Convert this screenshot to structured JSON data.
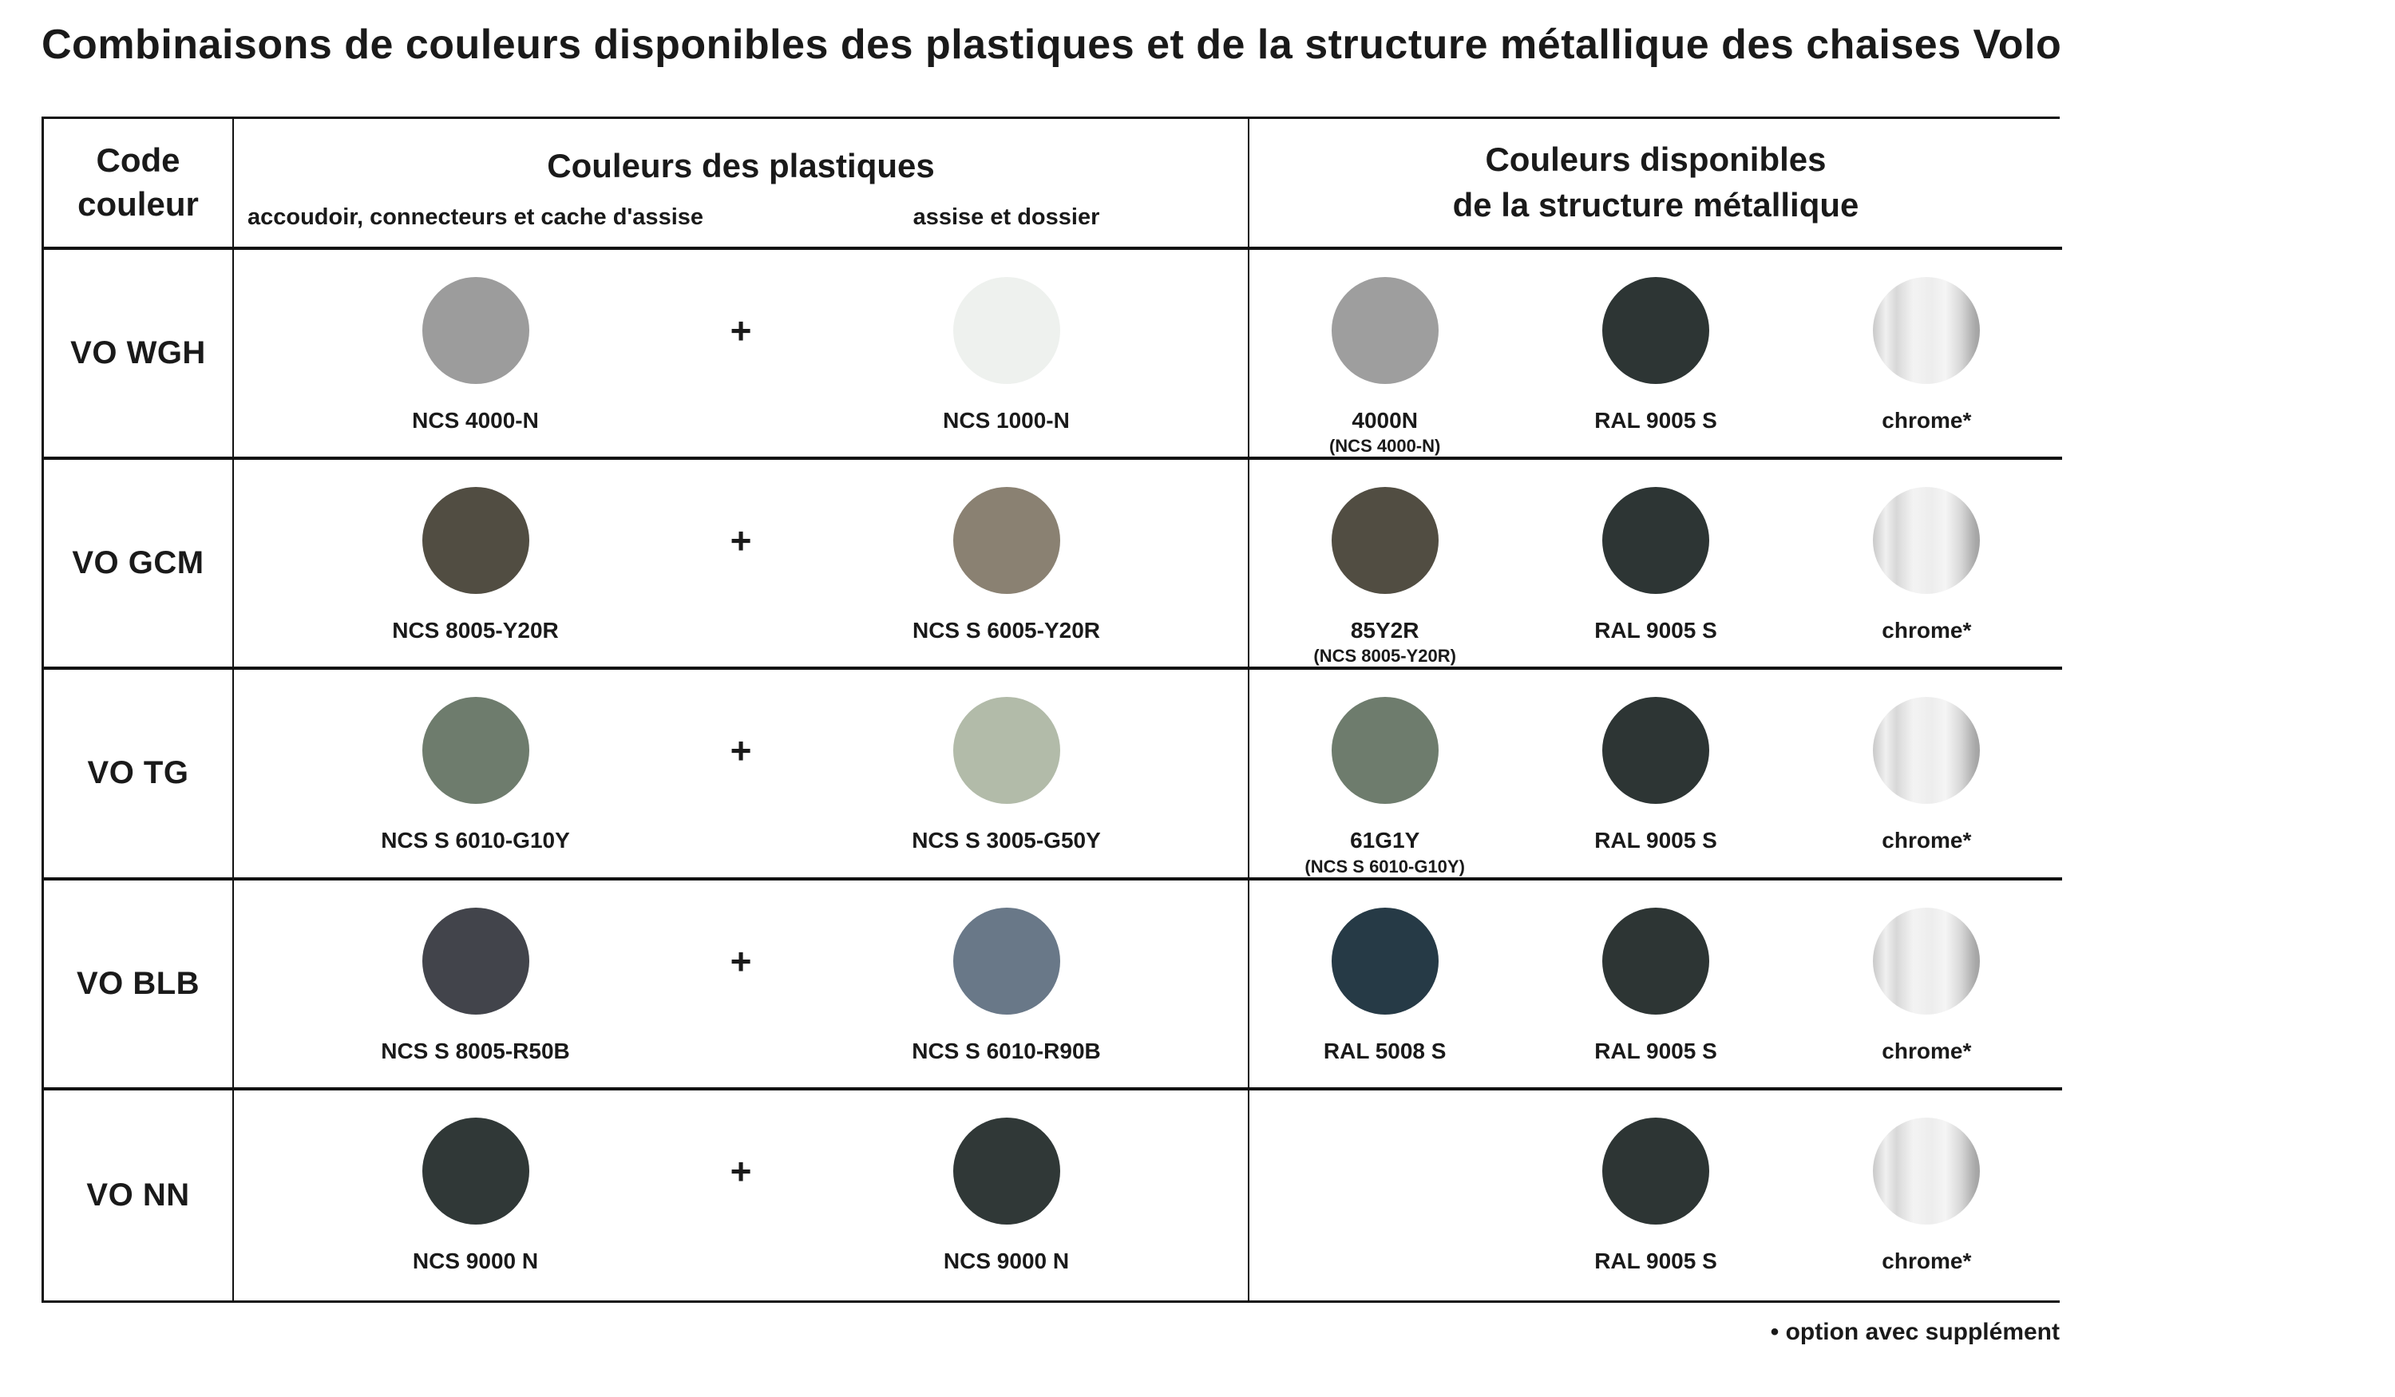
{
  "title": "Combinaisons de couleurs disponibles des plastiques et de la structure métallique des chaises Volo",
  "plus": "+",
  "footnote": "• option avec supplément",
  "chrome_gradient": [
    "#c9c9c9 0%",
    "#f0f0f0 12%",
    "#d8d8d8 22%",
    "#f3f3f3 38%",
    "#ededed 55%",
    "#f5f5f5 68%",
    "#d8d8d8 82%",
    "#a8a8a8 96%",
    "#a3a3a3 100%"
  ],
  "header": {
    "code": "Code\ncouleur",
    "plastics": {
      "title": "Couleurs des plastiques",
      "sub_left": "accoudoir, connecteurs et cache d'assise",
      "sub_right": "assise et dossier"
    },
    "metal": "Couleurs disponibles\nde la structure métallique"
  },
  "rows": [
    {
      "code": "VO WGH",
      "plastic1": {
        "label": "NCS 4000-N",
        "color": "#9c9c9c"
      },
      "plastic2": {
        "label": "NCS 1000-N",
        "color": "#eef1ee"
      },
      "metal": [
        {
          "label": "4000N",
          "sublabel": "(NCS 4000-N)",
          "color": "#9e9e9e",
          "type": "solid"
        },
        {
          "label": "RAL 9005 S",
          "color": "#2d3534",
          "type": "solid"
        },
        {
          "label": "chrome*",
          "type": "chrome"
        }
      ]
    },
    {
      "code": "VO GCM",
      "plastic1": {
        "label": "NCS 8005-Y20R",
        "color": "#514d42"
      },
      "plastic2": {
        "label": "NCS S 6005-Y20R",
        "color": "#8a8172"
      },
      "metal": [
        {
          "label": "85Y2R",
          "sublabel": "(NCS 8005-Y20R)",
          "color": "#514d42",
          "type": "solid"
        },
        {
          "label": "RAL 9005 S",
          "color": "#2d3534",
          "type": "solid"
        },
        {
          "label": "chrome*",
          "type": "chrome"
        }
      ]
    },
    {
      "code": "VO TG",
      "plastic1": {
        "label": "NCS S 6010-G10Y",
        "color": "#6e7c6d"
      },
      "plastic2": {
        "label": "NCS S 3005-G50Y",
        "color": "#b2bba9"
      },
      "metal": [
        {
          "label": "61G1Y",
          "sublabel": "(NCS S 6010-G10Y)",
          "color": "#6e7c6d",
          "type": "solid"
        },
        {
          "label": "RAL 9005 S",
          "color": "#2d3534",
          "type": "solid"
        },
        {
          "label": "chrome*",
          "type": "chrome"
        }
      ]
    },
    {
      "code": "VO BLB",
      "plastic1": {
        "label": "NCS S 8005-R50B",
        "color": "#42444b"
      },
      "plastic2": {
        "label": "NCS S 6010-R90B",
        "color": "#697888"
      },
      "metal": [
        {
          "label": "RAL 5008 S",
          "color": "#263a46",
          "type": "solid"
        },
        {
          "label": "RAL 9005 S",
          "color": "#2d3534",
          "type": "solid"
        },
        {
          "label": "chrome*",
          "type": "chrome"
        }
      ]
    },
    {
      "code": "VO NN",
      "plastic1": {
        "label": "NCS 9000 N",
        "color": "#303837"
      },
      "plastic2": {
        "label": "NCS 9000 N",
        "color": "#303837"
      },
      "metal": [
        null,
        {
          "label": "RAL 9005 S",
          "color": "#2d3534",
          "type": "solid"
        },
        {
          "label": "chrome*",
          "type": "chrome"
        }
      ]
    }
  ]
}
